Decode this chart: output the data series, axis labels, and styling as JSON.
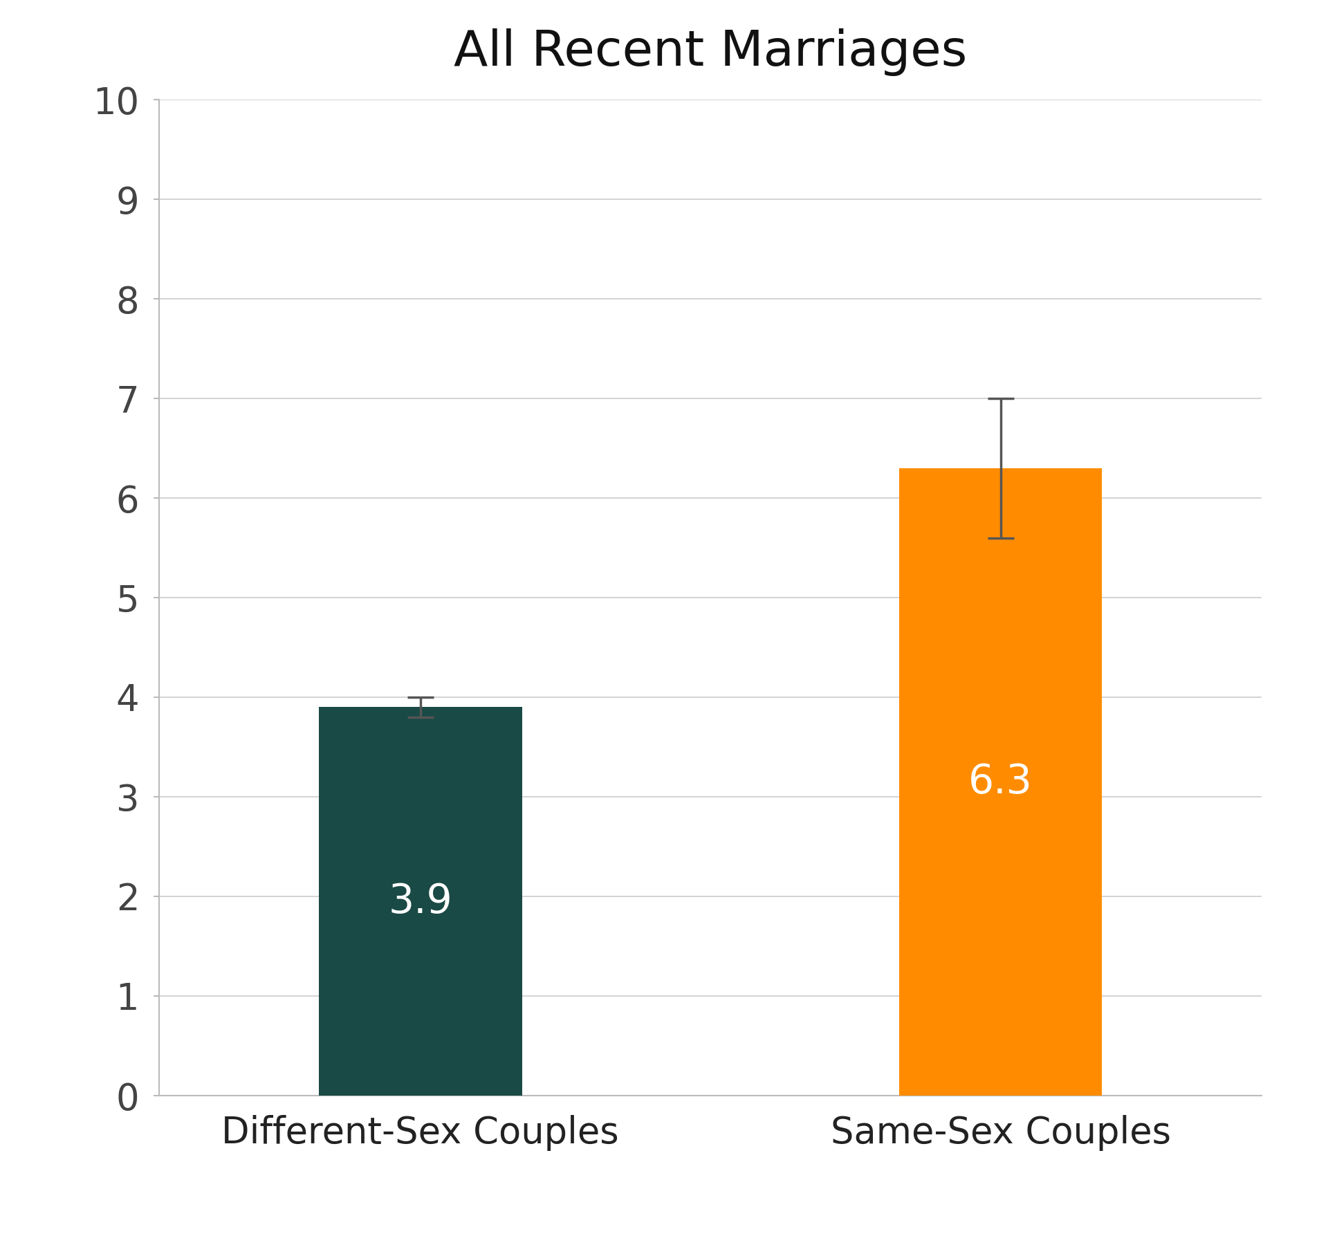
{
  "title": "All Recent Marriages",
  "categories": [
    "Different-Sex Couples",
    "Same-Sex Couples"
  ],
  "values": [
    3.9,
    6.3
  ],
  "errors": [
    0.1,
    0.7
  ],
  "bar_colors": [
    "#1a4a45",
    "#ff8c00"
  ],
  "bar_text_color": "#ffffff",
  "bar_labels": [
    "3.9",
    "6.3"
  ],
  "bar_label_fontsize": 42,
  "ylim": [
    0,
    10
  ],
  "yticks": [
    0,
    1,
    2,
    3,
    4,
    5,
    6,
    7,
    8,
    9,
    10
  ],
  "title_fontsize": 52,
  "tick_fontsize": 38,
  "xlabel_fontsize": 38,
  "background_color": "#ffffff",
  "grid_color": "#cccccc",
  "axis_color": "#bbbbbb",
  "error_color": "#555555",
  "bar_width": 0.35,
  "x_positions": [
    1,
    2
  ]
}
